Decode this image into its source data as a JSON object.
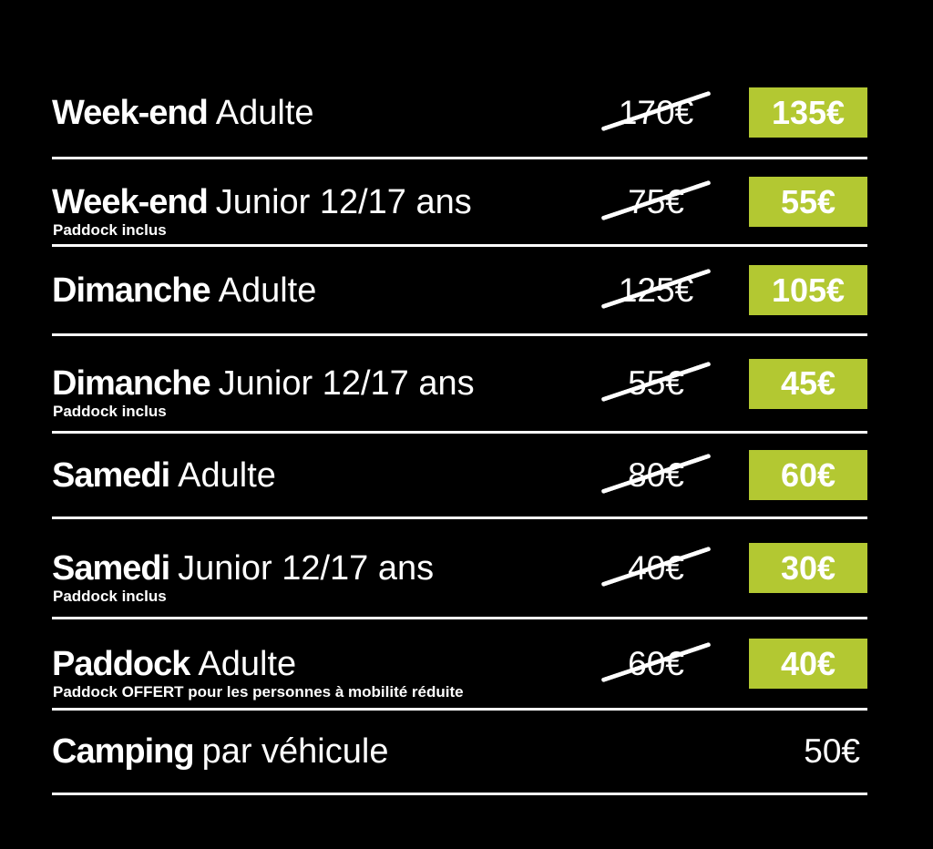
{
  "colors": {
    "accent": "#b3c832",
    "text": "#ffffff",
    "background": "#000000"
  },
  "currency_symbol": "€",
  "rows": [
    {
      "word": "Week-end",
      "label": "Adulte",
      "old_price": "170€",
      "new_price": "135€"
    },
    {
      "word": "Week-end",
      "label": "Junior 12/17 ans",
      "subtitle": "Paddock inclus",
      "old_price": "75€",
      "new_price": "55€"
    },
    {
      "word": "Dimanche",
      "label": "Adulte",
      "old_price": "125€",
      "new_price": "105€"
    },
    {
      "word": "Dimanche",
      "label": "Junior 12/17 ans",
      "subtitle": "Paddock inclus",
      "old_price": "55€",
      "new_price": "45€"
    },
    {
      "word": "Samedi",
      "label": "Adulte",
      "old_price": "80€",
      "new_price": "60€"
    },
    {
      "word": "Samedi",
      "label": "Junior 12/17 ans",
      "subtitle": "Paddock inclus",
      "old_price": "40€",
      "new_price": "30€"
    },
    {
      "word": "Paddock",
      "label": "Adulte",
      "subtitle": "Paddock OFFERT pour les personnes à mobilité réduite",
      "old_price": "60€",
      "new_price": "40€"
    },
    {
      "word": "Camping",
      "label": "par véhicule",
      "price": "50€"
    }
  ]
}
